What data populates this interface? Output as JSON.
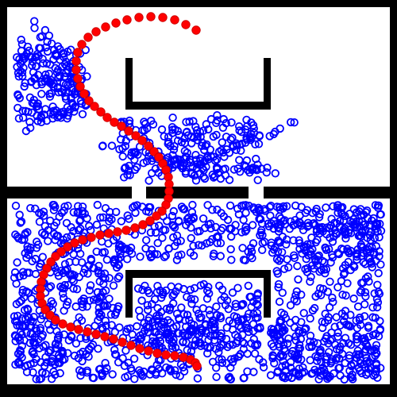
{
  "colors": {
    "background": "#000000",
    "free_space": "#ffffff",
    "explored_nodes": "#0000ff",
    "path": "#ff0000"
  },
  "legend": {
    "explored_nodes_marker": "hollow-circle",
    "path_marker": "filled-circle"
  }
}
